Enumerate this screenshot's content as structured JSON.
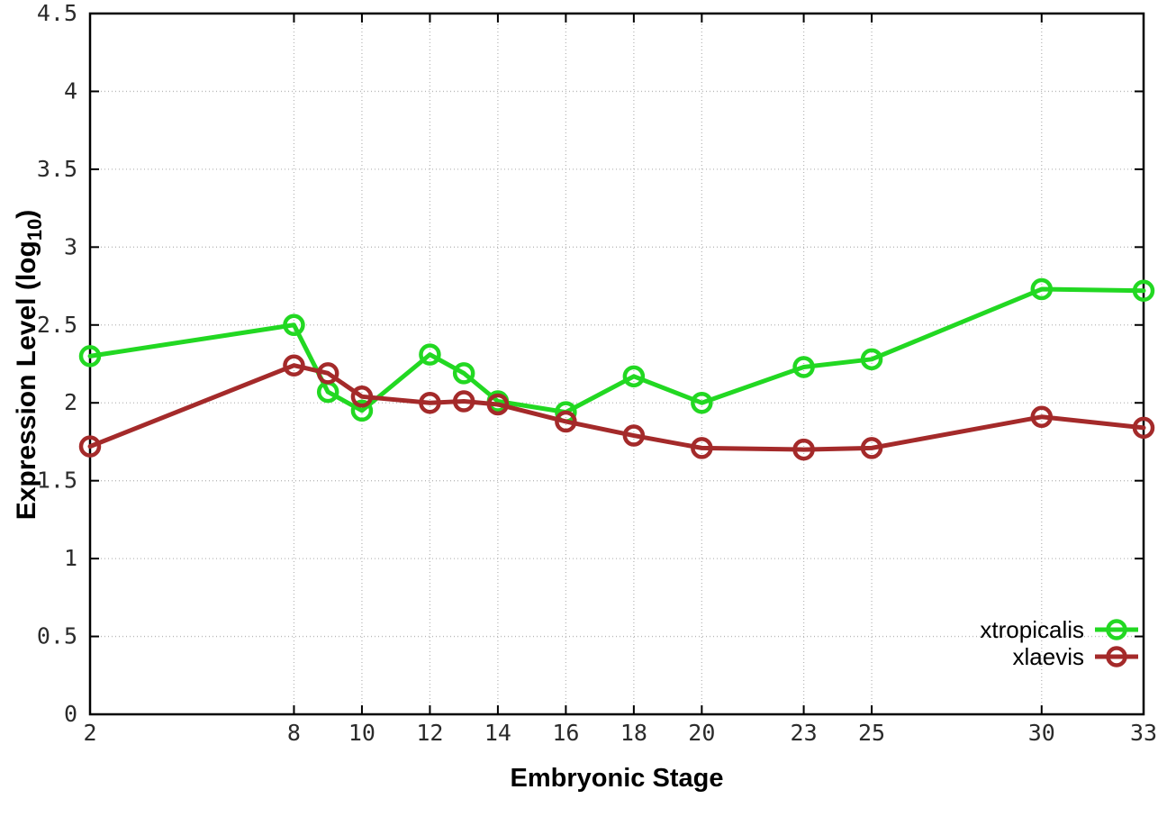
{
  "figure": {
    "background": "#ffffff",
    "border_color": "#000000",
    "grid_color": "#b8b8b8",
    "tick_label_color": "#2b2b2b"
  },
  "chart_data": {
    "type": "line",
    "title": "",
    "xlabel": "Embryonic Stage",
    "ylabel": "Expression Level (log10)",
    "ylabel_parts": {
      "main": "Expression Level (log",
      "sub": "10",
      "end": ")"
    },
    "x": [
      2,
      8,
      9,
      10,
      12,
      13,
      14,
      16,
      18,
      20,
      23,
      25,
      30,
      33
    ],
    "xlim": [
      2,
      33
    ],
    "ylim": [
      0,
      4.5
    ],
    "xticks": {
      "values": [
        2,
        8,
        10,
        12,
        14,
        16,
        18,
        20,
        23,
        25,
        30,
        33
      ],
      "labels": [
        "2",
        "8",
        "10",
        "12",
        "14",
        "16",
        "18",
        "20",
        "23",
        "25",
        "30",
        "33"
      ]
    },
    "yticks": {
      "values": [
        0,
        0.5,
        1,
        1.5,
        2,
        2.5,
        3,
        3.5,
        4,
        4.5
      ],
      "labels": [
        "0",
        "0.5",
        "1",
        "1.5",
        "2",
        "2.5",
        "3",
        "3.5",
        "4",
        "4.5"
      ]
    },
    "grid": true,
    "legend_position": "bottom-right",
    "marker": "open-circle",
    "series": [
      {
        "name": "xtropicalis",
        "color": "#22d822",
        "values": [
          2.3,
          2.5,
          2.07,
          1.95,
          2.31,
          2.19,
          2.01,
          1.94,
          2.17,
          2.0,
          2.23,
          2.28,
          2.73,
          2.72
        ]
      },
      {
        "name": "xlaevis",
        "color": "#a42a2a",
        "values": [
          1.72,
          2.24,
          2.19,
          2.04,
          2.0,
          2.01,
          1.99,
          1.88,
          1.79,
          1.71,
          1.7,
          1.71,
          1.91,
          1.84
        ]
      }
    ]
  }
}
